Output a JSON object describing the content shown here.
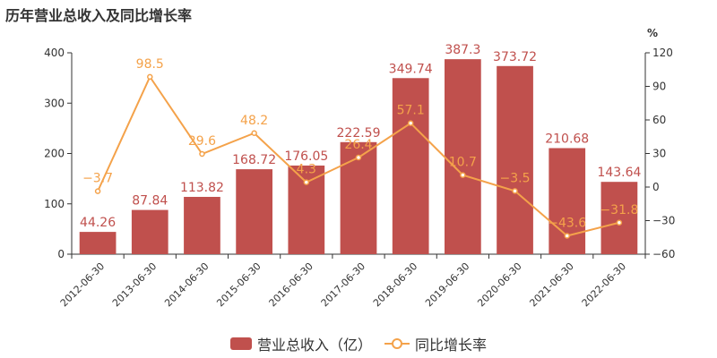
{
  "title": "历年营业总收入及同比增长率",
  "colors": {
    "bar": "#c0504d",
    "line": "#f4a24a"
  },
  "chart_data": {
    "type": "bar",
    "categories": [
      "2012-06-30",
      "2013-06-30",
      "2014-06-30",
      "2015-06-30",
      "2016-06-30",
      "2017-06-30",
      "2018-06-30",
      "2019-06-30",
      "2020-06-30",
      "2021-06-30",
      "2022-06-30"
    ],
    "series": [
      {
        "name": "营业总收入（亿）",
        "type": "bar",
        "axis": "left",
        "values": [
          44.26,
          87.84,
          113.82,
          168.72,
          176.05,
          222.59,
          349.74,
          387.3,
          373.72,
          210.68,
          143.64
        ]
      },
      {
        "name": "同比增长率",
        "type": "line",
        "axis": "right",
        "values": [
          -3.7,
          98.5,
          29.6,
          48.2,
          4.3,
          26.4,
          57.1,
          10.7,
          -3.5,
          -43.6,
          -31.8
        ],
        "labels": [
          "−3.7",
          "98.5",
          "29.6",
          "48.2",
          "4.3",
          "26.4",
          "57.1",
          "10.7",
          "−3.5",
          "−43.6",
          "−31.8"
        ]
      }
    ],
    "y_left": {
      "ylim": [
        0,
        400
      ],
      "ticks": [
        "0",
        "100",
        "200",
        "300",
        "400"
      ]
    },
    "y_right": {
      "ylim": [
        -60,
        120
      ],
      "ticks": [
        "−60",
        "−30",
        "0",
        "30",
        "60",
        "90",
        "120"
      ],
      "unit": "%"
    },
    "legend_position": "bottom"
  }
}
